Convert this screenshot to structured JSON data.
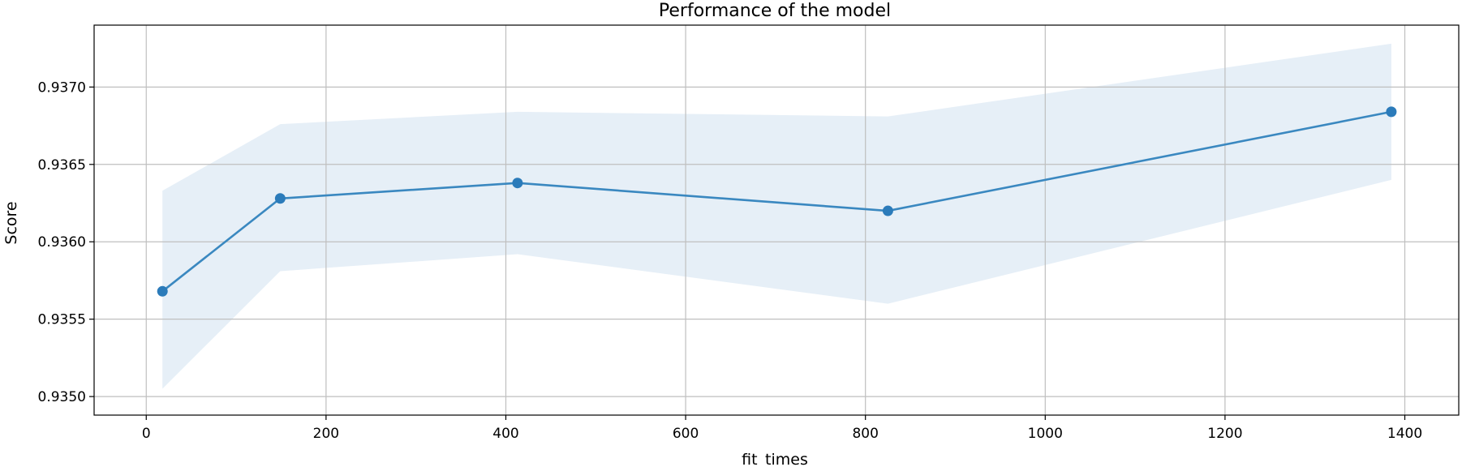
{
  "chart_data": {
    "type": "line",
    "title": "Performance of the model",
    "xlabel": "fit_times",
    "ylabel": "Score",
    "xlim": [
      -58,
      1460
    ],
    "ylim": [
      0.93488,
      0.9374
    ],
    "x_ticks": [
      0,
      200,
      400,
      600,
      800,
      1000,
      1200,
      1400
    ],
    "x_tick_labels": [
      "0",
      "200",
      "400",
      "600",
      "800",
      "1000",
      "1200",
      "1400"
    ],
    "y_ticks": [
      0.935,
      0.9355,
      0.936,
      0.9365,
      0.937
    ],
    "y_tick_labels": [
      "0.9350",
      "0.9355",
      "0.9360",
      "0.9365",
      "0.9370"
    ],
    "grid": true,
    "series": [
      {
        "x": [
          18,
          149,
          413,
          825,
          1385
        ],
        "values": [
          0.93568,
          0.93628,
          0.93638,
          0.9362,
          0.93684
        ],
        "lower": [
          0.93505,
          0.93581,
          0.93592,
          0.9356,
          0.9364
        ],
        "upper": [
          0.93633,
          0.93676,
          0.93684,
          0.93681,
          0.93728
        ]
      }
    ],
    "colors": {
      "line": "#3a88c0",
      "marker": "#2b7bba",
      "band": "#e6eff7",
      "grid": "#bfbfbf",
      "axis": "#000000"
    }
  }
}
